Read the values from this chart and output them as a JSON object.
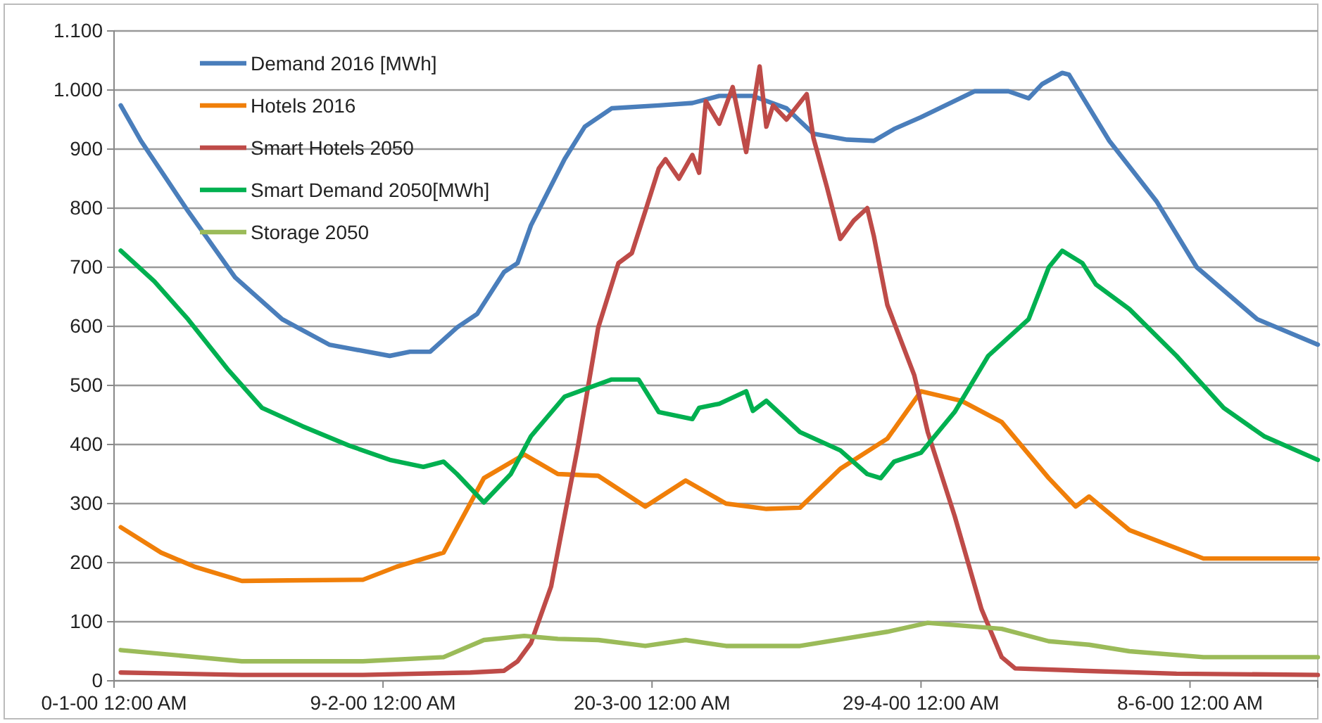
{
  "chart_data": {
    "type": "line",
    "xlim": [
      "1999-12-31",
      "2000-06-27"
    ],
    "xticks": [
      {
        "value": "1999-12-31",
        "label": "0-1-00 12:00 AM"
      },
      {
        "value": "2000-02-09",
        "label": "9-2-00 12:00 AM"
      },
      {
        "value": "2000-03-20",
        "label": "20-3-00 12:00 AM"
      },
      {
        "value": "2000-04-29",
        "label": "29-4-00 12:00 AM"
      },
      {
        "value": "2000-06-08",
        "label": "8-6-00 12:00 AM"
      }
    ],
    "ylim": [
      0,
      1100
    ],
    "yticks": [
      0,
      100,
      200,
      300,
      400,
      500,
      600,
      700,
      800,
      900,
      {
        "value": 1000,
        "label": "1.000"
      },
      {
        "value": 1100,
        "label": "1.100"
      }
    ],
    "grid": "y",
    "legend": "top left",
    "marker": "none",
    "line_style": "solid",
    "series": [
      {
        "name": "Demand 2016 [MWh]",
        "color": "#4a7ebb",
        "x": [
          "2000-01-01",
          "2000-01-04",
          "2000-01-11",
          "2000-01-18",
          "2000-01-25",
          "2000-02-01",
          "2000-02-10",
          "2000-02-13",
          "2000-02-16",
          "2000-02-20",
          "2000-02-23",
          "2000-02-27",
          "2000-02-29",
          "2000-03-02",
          "2000-03-07",
          "2000-03-10",
          "2000-03-14",
          "2000-03-21",
          "2000-03-26",
          "2000-03-30",
          "2000-04-04",
          "2000-04-09",
          "2000-04-13",
          "2000-04-18",
          "2000-04-22",
          "2000-04-25",
          "2000-04-29",
          "2000-05-07",
          "2000-05-12",
          "2000-05-15",
          "2000-05-17",
          "2000-05-20",
          "2000-05-21",
          "2000-05-27",
          "2000-06-03",
          "2000-06-09",
          "2000-06-18",
          "2000-06-27"
        ],
        "values": [
          974,
          914,
          795,
          683,
          612,
          569,
          550,
          557,
          557,
          598,
          621,
          692,
          707,
          771,
          883,
          938,
          969,
          974,
          978,
          990,
          990,
          969,
          926,
          916,
          914,
          934,
          954,
          998,
          998,
          986,
          1010,
          1029,
          1026,
          914,
          812,
          700,
          612,
          569
        ]
      },
      {
        "name": "Hotels 2016",
        "color": "#f07f09",
        "x": [
          "2000-01-01",
          "2000-01-07",
          "2000-01-12",
          "2000-01-19",
          "2000-01-26",
          "2000-02-06",
          "2000-02-11",
          "2000-02-18",
          "2000-02-24",
          "2000-03-01",
          "2000-03-06",
          "2000-03-12",
          "2000-03-19",
          "2000-03-25",
          "2000-03-31",
          "2000-04-06",
          "2000-04-11",
          "2000-04-17",
          "2000-04-24",
          "2000-04-29",
          "2000-05-05",
          "2000-05-11",
          "2000-05-18",
          "2000-05-22",
          "2000-05-24",
          "2000-05-30",
          "2000-06-10",
          "2000-06-27"
        ],
        "values": [
          260,
          217,
          193,
          169,
          170,
          171,
          193,
          217,
          343,
          383,
          350,
          347,
          295,
          339,
          300,
          291,
          293,
          359,
          410,
          490,
          474,
          438,
          343,
          295,
          312,
          255,
          207,
          207
        ]
      },
      {
        "name": "Smart Hotels 2050",
        "color": "#be4b48",
        "x": [
          "2000-01-01",
          "2000-01-19",
          "2000-02-06",
          "2000-02-22",
          "2000-02-27",
          "2000-02-29",
          "2000-03-02",
          "2000-03-05",
          "2000-03-09",
          "2000-03-12",
          "2000-03-15",
          "2000-03-17",
          "2000-03-19",
          "2000-03-21",
          "2000-03-22",
          "2000-03-24",
          "2000-03-26",
          "2000-03-27",
          "2000-03-28",
          "2000-03-30",
          "2000-04-01",
          "2000-04-03",
          "2000-04-05",
          "2000-04-06",
          "2000-04-07",
          "2000-04-09",
          "2000-04-12",
          "2000-04-13",
          "2000-04-15",
          "2000-04-17",
          "2000-04-19",
          "2000-04-21",
          "2000-04-22",
          "2000-04-24",
          "2000-04-28",
          "2000-04-30",
          "2000-05-04",
          "2000-05-08",
          "2000-05-11",
          "2000-05-13",
          "2000-05-23",
          "2000-06-06",
          "2000-06-27"
        ],
        "values": [
          14,
          10,
          10,
          14,
          17,
          33,
          64,
          160,
          398,
          598,
          707,
          724,
          795,
          867,
          883,
          850,
          890,
          860,
          981,
          943,
          1005,
          895,
          1040,
          938,
          974,
          950,
          993,
          919,
          836,
          748,
          779,
          800,
          752,
          636,
          517,
          421,
          279,
          121,
          40,
          21,
          17,
          12,
          10
        ]
      },
      {
        "name": "Smart Demand 2050[MWh]",
        "color": "#00b050",
        "x": [
          "2000-01-01",
          "2000-01-06",
          "2000-01-11",
          "2000-01-17",
          "2000-01-22",
          "2000-01-28",
          "2000-02-04",
          "2000-02-10",
          "2000-02-15",
          "2000-02-18",
          "2000-02-20",
          "2000-02-24",
          "2000-02-28",
          "2000-03-02",
          "2000-03-07",
          "2000-03-14",
          "2000-03-18",
          "2000-03-21",
          "2000-03-26",
          "2000-03-27",
          "2000-03-30",
          "2000-04-03",
          "2000-04-04",
          "2000-04-06",
          "2000-04-11",
          "2000-04-17",
          "2000-04-21",
          "2000-04-23",
          "2000-04-25",
          "2000-04-29",
          "2000-05-04",
          "2000-05-09",
          "2000-05-15",
          "2000-05-18",
          "2000-05-20",
          "2000-05-23",
          "2000-05-25",
          "2000-05-30",
          "2000-06-06",
          "2000-06-13",
          "2000-06-19",
          "2000-06-27"
        ],
        "values": [
          728,
          676,
          612,
          526,
          462,
          431,
          398,
          374,
          362,
          371,
          350,
          302,
          350,
          414,
          481,
          510,
          510,
          455,
          443,
          462,
          469,
          490,
          457,
          474,
          421,
          390,
          350,
          343,
          371,
          386,
          455,
          550,
          612,
          700,
          728,
          707,
          671,
          629,
          550,
          462,
          414,
          374
        ]
      },
      {
        "name": "Storage 2050",
        "color": "#9bbb59",
        "x": [
          "2000-01-01",
          "2000-01-19",
          "2000-02-06",
          "2000-02-18",
          "2000-02-24",
          "2000-03-01",
          "2000-03-06",
          "2000-03-12",
          "2000-03-19",
          "2000-03-25",
          "2000-03-31",
          "2000-04-11",
          "2000-04-24",
          "2000-04-30",
          "2000-05-11",
          "2000-05-18",
          "2000-05-24",
          "2000-05-30",
          "2000-06-10",
          "2000-06-27"
        ],
        "values": [
          52,
          33,
          33,
          40,
          69,
          76,
          71,
          69,
          59,
          69,
          59,
          59,
          83,
          98,
          88,
          67,
          61,
          50,
          40,
          40
        ]
      }
    ]
  }
}
